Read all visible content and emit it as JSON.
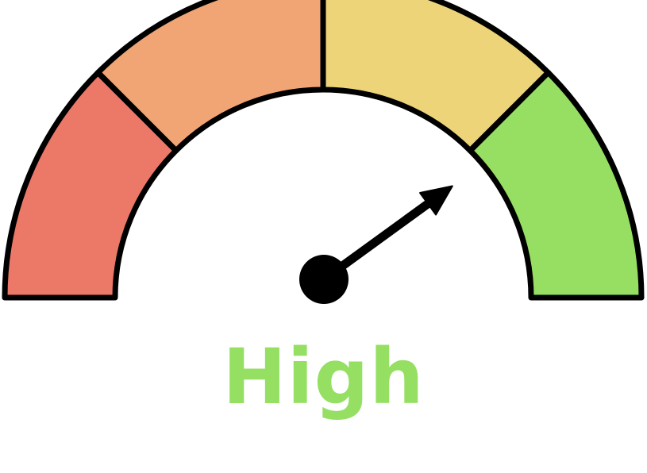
{
  "gauge": {
    "label": "High",
    "label_color": "#95df63",
    "level_fraction": 0.8,
    "segments": [
      {
        "color": "#ec7868"
      },
      {
        "color": "#f1a574"
      },
      {
        "color": "#eed479"
      },
      {
        "color": "#96df63"
      }
    ],
    "outline_color": "#000000",
    "needle_color": "#000000"
  }
}
